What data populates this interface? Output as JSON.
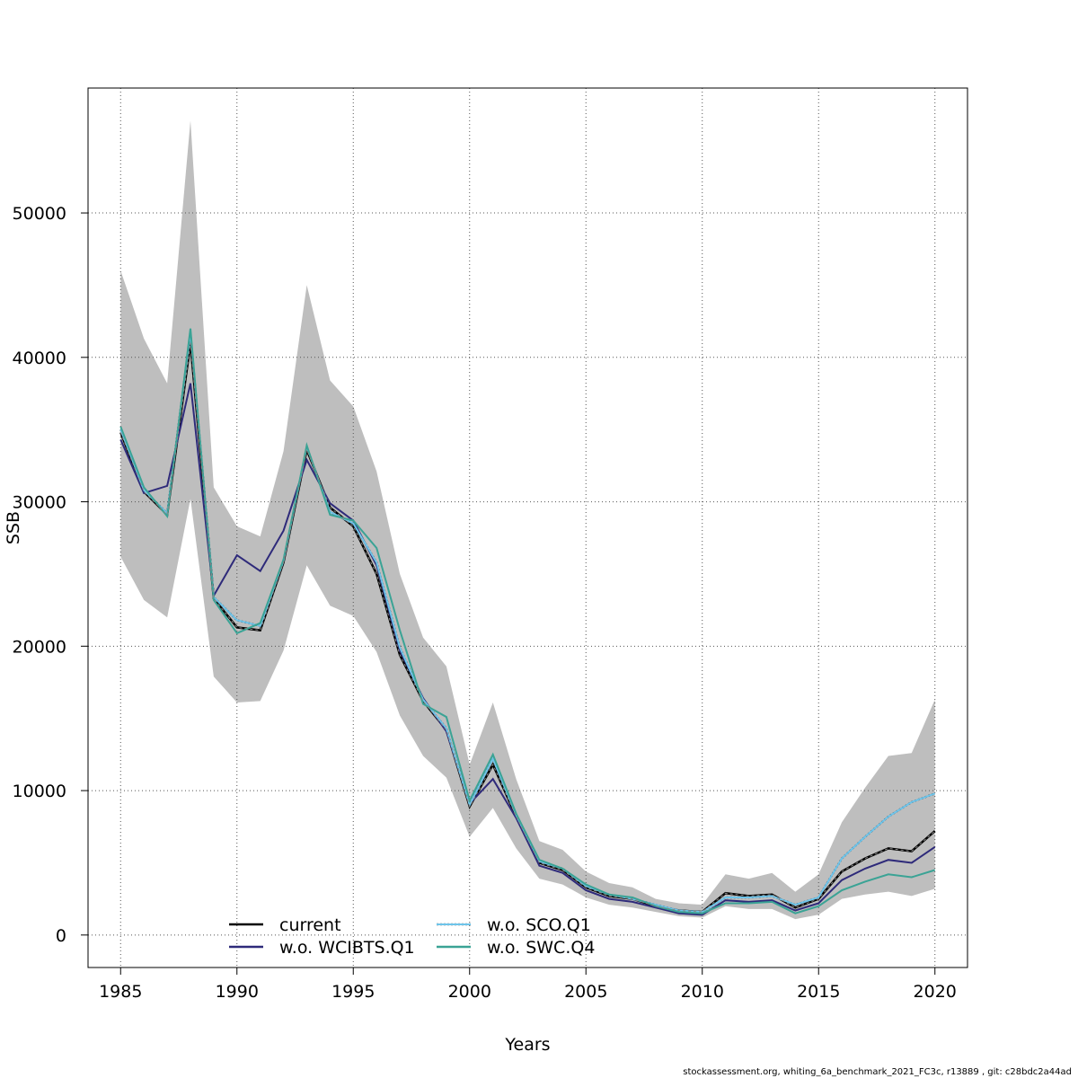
{
  "chart_data": {
    "type": "line",
    "xlabel": "Years",
    "ylabel": "SSB",
    "xlim": [
      1983.6,
      2021.4
    ],
    "ylim": [
      -2250,
      58650
    ],
    "xticks": [
      1985,
      1990,
      1995,
      2000,
      2005,
      2010,
      2015,
      2020
    ],
    "yticks": [
      0,
      10000,
      20000,
      30000,
      40000,
      50000
    ],
    "grid": true,
    "legend_position": "bottom",
    "x": [
      1985,
      1986,
      1987,
      1988,
      1989,
      1990,
      1991,
      1992,
      1993,
      1994,
      1995,
      1996,
      1997,
      1998,
      1999,
      2000,
      2001,
      2002,
      2003,
      2004,
      2005,
      2006,
      2007,
      2008,
      2009,
      2010,
      2011,
      2012,
      2013,
      2014,
      2015,
      2016,
      2017,
      2018,
      2019,
      2020
    ],
    "confidence_band": {
      "color": "#bebebe",
      "lower": [
        26200,
        23200,
        22000,
        30200,
        17900,
        16100,
        16200,
        19700,
        25600,
        22800,
        22100,
        19600,
        15200,
        12400,
        10900,
        6800,
        8800,
        6000,
        3900,
        3500,
        2600,
        2100,
        1900,
        1600,
        1300,
        1200,
        2000,
        1800,
        1800,
        1100,
        1400,
        2500,
        2800,
        3000,
        2700,
        3200
      ],
      "upper": [
        46000,
        41300,
        38200,
        56400,
        31000,
        28300,
        27600,
        33500,
        45000,
        38400,
        36600,
        32100,
        25000,
        20600,
        18600,
        11800,
        16100,
        10800,
        6500,
        5900,
        4400,
        3600,
        3300,
        2500,
        2200,
        2100,
        4200,
        3900,
        4300,
        3000,
        4200,
        7800,
        10200,
        12400,
        12600,
        16300
      ]
    },
    "series": [
      {
        "name": "current",
        "color": "#000000",
        "style": "solid",
        "values": [
          34800,
          30700,
          29100,
          41000,
          23300,
          21300,
          21100,
          25800,
          33600,
          29600,
          28300,
          25000,
          19400,
          16200,
          14200,
          8900,
          11800,
          8200,
          5000,
          4500,
          3300,
          2700,
          2500,
          2000,
          1700,
          1600,
          2900,
          2700,
          2800,
          1900,
          2500,
          4400,
          5300,
          6000,
          5800,
          7200
        ]
      },
      {
        "name": "w.o. WCIBTS.Q1",
        "color": "#2e2a7a",
        "style": "solid",
        "values": [
          34300,
          30600,
          31100,
          38200,
          23500,
          26300,
          25200,
          28000,
          32900,
          29900,
          28700,
          25600,
          19700,
          16400,
          14100,
          9100,
          10800,
          8100,
          4800,
          4300,
          3100,
          2500,
          2300,
          1900,
          1500,
          1400,
          2400,
          2300,
          2400,
          1700,
          2200,
          3800,
          4600,
          5200,
          5000,
          6100
        ]
      },
      {
        "name": "w.o. SCO.Q1",
        "color": "#6ec4ea",
        "style": "dotted",
        "values": [
          35000,
          30800,
          29200,
          41700,
          23400,
          21800,
          21400,
          25900,
          33800,
          29300,
          28500,
          25800,
          19900,
          16300,
          14300,
          9000,
          12200,
          8300,
          5100,
          4600,
          3400,
          2800,
          2500,
          2100,
          1700,
          1600,
          2600,
          2600,
          2700,
          2100,
          2600,
          5300,
          6800,
          8200,
          9200,
          9800
        ]
      },
      {
        "name": "w.o. SWC.Q4",
        "color": "#3aa395",
        "style": "solid",
        "values": [
          35200,
          31000,
          29000,
          42000,
          23200,
          20900,
          21600,
          26000,
          33900,
          29100,
          28700,
          26800,
          21100,
          16000,
          15100,
          9300,
          12500,
          8400,
          5200,
          4600,
          3500,
          2800,
          2600,
          2000,
          1600,
          1500,
          2200,
          2200,
          2300,
          1500,
          2000,
          3100,
          3700,
          4200,
          4000,
          4500
        ]
      }
    ]
  },
  "footer": "stockassessment.org, whiting_6a_benchmark_2021_FC3c, r13889 , git: c28bdc2a44ad"
}
